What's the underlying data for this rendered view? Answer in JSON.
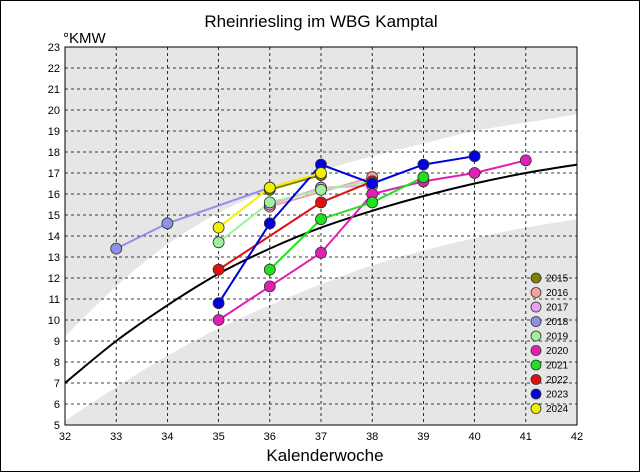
{
  "chart_data": {
    "type": "line",
    "title": "Rheinriesling im WBG Kamptal",
    "xlabel": "Kalenderwoche",
    "ylabel": "°KMW",
    "xlim": [
      32,
      42
    ],
    "ylim": [
      5,
      23
    ],
    "x_ticks": [
      "32",
      "33",
      "34",
      "35",
      "36",
      "37",
      "38",
      "39",
      "40",
      "41",
      "42"
    ],
    "y_ticks": [
      "5",
      "6",
      "7",
      "8",
      "9",
      "10",
      "11",
      "12",
      "13",
      "14",
      "15",
      "16",
      "17",
      "18",
      "19",
      "20",
      "21",
      "22",
      "23"
    ],
    "grid": true,
    "legend_position": "bottom-right",
    "reference_curve": {
      "color": "#000000",
      "x": [
        32,
        33,
        34,
        35,
        36,
        37,
        38,
        39,
        40,
        41,
        42
      ],
      "y": [
        7.0,
        9.0,
        10.7,
        12.2,
        13.4,
        14.4,
        15.2,
        15.9,
        16.5,
        17.0,
        17.4
      ]
    },
    "band_upper": {
      "x": [
        32,
        33,
        34,
        35,
        36,
        37,
        38,
        39,
        40,
        41,
        42
      ],
      "y": [
        9.2,
        11.6,
        13.6,
        15.1,
        16.2,
        17.1,
        17.8,
        18.4,
        19.0,
        19.4,
        19.8
      ]
    },
    "band_lower": {
      "x": [
        32,
        33,
        34,
        35,
        36,
        37,
        38,
        39,
        40,
        41,
        42
      ],
      "y": [
        5.2,
        6.8,
        8.3,
        9.6,
        10.7,
        11.7,
        12.6,
        13.3,
        13.9,
        14.4,
        14.8
      ]
    },
    "series": [
      {
        "name": "2015",
        "color": "#808000",
        "points": [
          [
            36,
            16.2
          ],
          [
            37,
            16.9
          ]
        ]
      },
      {
        "name": "2016",
        "color": "#f4a0a0",
        "points": [
          [
            36,
            15.4
          ],
          [
            38,
            16.8
          ]
        ]
      },
      {
        "name": "2017",
        "color": "#f0a0f0",
        "points": [
          [
            36,
            15.5
          ],
          [
            37,
            16.3
          ],
          [
            38,
            16.4
          ]
        ]
      },
      {
        "name": "2018",
        "color": "#9090e8",
        "points": [
          [
            33,
            13.4
          ],
          [
            34,
            14.6
          ],
          [
            36,
            16.3
          ]
        ]
      },
      {
        "name": "2019",
        "color": "#a0f0a0",
        "points": [
          [
            35,
            13.7
          ],
          [
            36,
            15.6
          ],
          [
            37,
            16.2
          ],
          [
            38,
            16.6
          ]
        ]
      },
      {
        "name": "2020",
        "color": "#e020b0",
        "points": [
          [
            35,
            10.0
          ],
          [
            36,
            11.6
          ],
          [
            37,
            13.2
          ],
          [
            38,
            16.0
          ],
          [
            39,
            16.6
          ],
          [
            40,
            17.0
          ],
          [
            41,
            17.6
          ]
        ]
      },
      {
        "name": "2021",
        "color": "#20e020",
        "points": [
          [
            36,
            12.4
          ],
          [
            37,
            14.8
          ],
          [
            38,
            15.6
          ],
          [
            39,
            16.8
          ]
        ]
      },
      {
        "name": "2022",
        "color": "#e01010",
        "points": [
          [
            35,
            12.4
          ],
          [
            37,
            15.6
          ],
          [
            38,
            16.6
          ]
        ]
      },
      {
        "name": "2023",
        "color": "#0000e0",
        "points": [
          [
            35,
            10.8
          ],
          [
            36,
            14.6
          ],
          [
            37,
            17.4
          ],
          [
            38,
            16.5
          ],
          [
            39,
            17.4
          ],
          [
            40,
            17.8
          ]
        ]
      },
      {
        "name": "2024",
        "color": "#f0f000",
        "points": [
          [
            35,
            14.4
          ],
          [
            36,
            16.3
          ],
          [
            37,
            17.0
          ]
        ]
      }
    ]
  }
}
